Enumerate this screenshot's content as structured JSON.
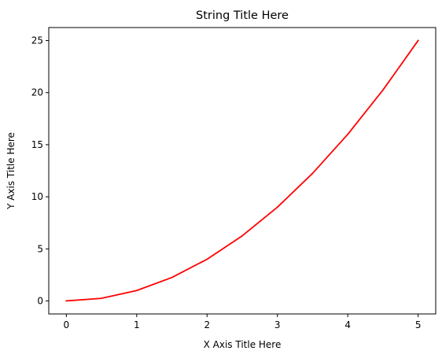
{
  "chart_data": {
    "type": "line",
    "title": "String Title Here",
    "xlabel": "X Axis Title Here",
    "ylabel": "Y Axis Title Here",
    "xlim": [
      -0.25,
      5.25
    ],
    "ylim": [
      -1.25,
      26.25
    ],
    "xticks": [
      0,
      1,
      2,
      3,
      4,
      5
    ],
    "yticks": [
      0,
      5,
      10,
      15,
      20,
      25
    ],
    "xtick_labels": [
      "0",
      "1",
      "2",
      "3",
      "4",
      "5"
    ],
    "ytick_labels": [
      "0",
      "5",
      "10",
      "15",
      "20",
      "25"
    ],
    "grid": false,
    "legend": "none",
    "series": [
      {
        "color": "#ff0000",
        "x": [
          0,
          0.5,
          1,
          1.5,
          2,
          2.5,
          3,
          3.5,
          4,
          4.5,
          5
        ],
        "y": [
          0,
          0.25,
          1,
          2.25,
          4,
          6.25,
          9,
          12.25,
          16,
          20.25,
          25
        ]
      }
    ]
  }
}
